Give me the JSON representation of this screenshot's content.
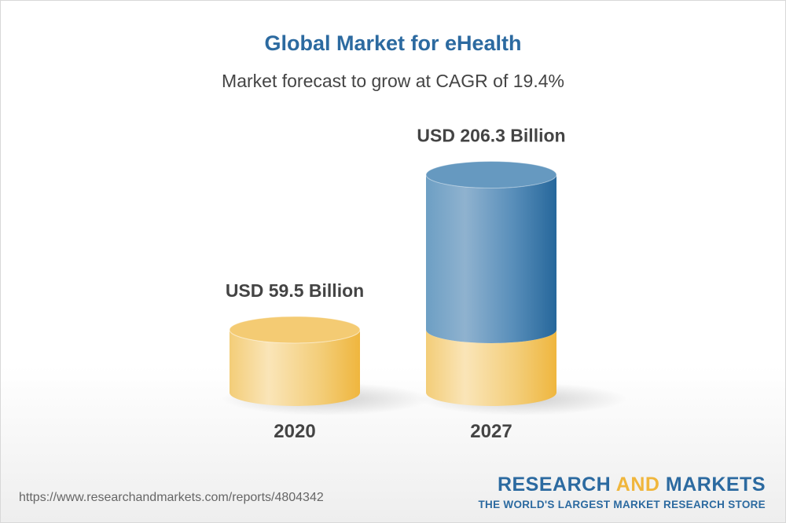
{
  "chart_data": {
    "type": "bar",
    "style": "3d-cylinder",
    "title": "Global Market for eHealth",
    "subtitle": "Market forecast to grow at CAGR of 19.4%",
    "categories": [
      "2020",
      "2027"
    ],
    "values": [
      59.5,
      206.3
    ],
    "data_labels": [
      "USD 59.5 Billion",
      "USD 206.3 Billion"
    ],
    "unit": "USD Billion",
    "grid": false,
    "colors": {
      "base": "#f2c45a",
      "growth": "#3a77a8"
    }
  },
  "footer": {
    "url": "https://www.researchandmarkets.com/reports/4804342",
    "logo_part1": "RESEARCH",
    "logo_part2": "AND",
    "logo_part3": "MARKETS",
    "tagline": "THE WORLD'S LARGEST MARKET RESEARCH STORE"
  }
}
